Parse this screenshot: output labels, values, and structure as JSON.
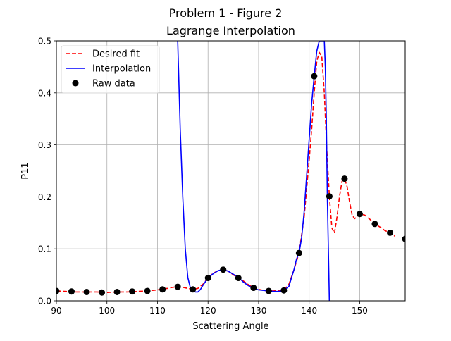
{
  "chart_data": {
    "type": "line",
    "suptitle": "Problem 1 - Figure 2",
    "title": "Lagrange Interpolation",
    "xlabel": "Scattering Angle",
    "ylabel": "P11",
    "xlim": [
      90,
      159
    ],
    "ylim": [
      0,
      0.5
    ],
    "xticks": [
      90,
      100,
      110,
      120,
      130,
      140,
      150
    ],
    "xtick_labels": [
      "90",
      "100",
      "110",
      "120",
      "130",
      "140",
      "150"
    ],
    "yticks": [
      0,
      0.1,
      0.2,
      0.3,
      0.4,
      0.5
    ],
    "ytick_labels": [
      "0.0",
      "0.1",
      "0.2",
      "0.3",
      "0.4",
      "0.5"
    ],
    "grid": true,
    "legend_placement": "upper-left",
    "series": [
      {
        "name": "Desired fit",
        "style": "dashed",
        "color": "#ff0000",
        "x": [
          90,
          92,
          94,
          96,
          98,
          100,
          102,
          104,
          106,
          108,
          110,
          112,
          113,
          114,
          115,
          116,
          117,
          118,
          119,
          120,
          121,
          122,
          123,
          124,
          125,
          126,
          127,
          128,
          129,
          130,
          131,
          132,
          133,
          134,
          135,
          136,
          137,
          138,
          139,
          140,
          140.5,
          141,
          141.5,
          142,
          142.5,
          143,
          143.5,
          144,
          144.5,
          145,
          145.5,
          146,
          146.5,
          147,
          147.5,
          148,
          148.5,
          149,
          150,
          151,
          152,
          153,
          154,
          155,
          156,
          157
        ],
        "y": [
          0.019,
          0.018,
          0.017,
          0.017,
          0.017,
          0.016,
          0.017,
          0.017,
          0.018,
          0.019,
          0.021,
          0.024,
          0.026,
          0.027,
          0.026,
          0.024,
          0.022,
          0.024,
          0.032,
          0.044,
          0.053,
          0.058,
          0.06,
          0.057,
          0.05,
          0.044,
          0.038,
          0.031,
          0.025,
          0.022,
          0.02,
          0.019,
          0.019,
          0.02,
          0.021,
          0.032,
          0.06,
          0.092,
          0.16,
          0.27,
          0.33,
          0.4,
          0.46,
          0.478,
          0.47,
          0.4,
          0.29,
          0.201,
          0.14,
          0.13,
          0.16,
          0.2,
          0.23,
          0.235,
          0.22,
          0.19,
          0.165,
          0.158,
          0.167,
          0.165,
          0.157,
          0.148,
          0.142,
          0.135,
          0.131,
          0.124
        ]
      },
      {
        "name": "Interpolation",
        "style": "solid",
        "color": "#0000ff",
        "x": [
          114,
          114.5,
          115,
          115.5,
          116,
          116.5,
          117,
          117.5,
          118,
          118.5,
          119,
          120,
          121,
          122,
          123,
          124,
          125,
          126,
          127,
          128,
          129,
          130,
          131,
          132,
          133,
          134,
          135,
          136,
          137,
          137.5,
          138,
          138.5,
          139,
          139.5,
          140,
          140.5,
          141,
          141.5,
          142,
          142.5,
          143,
          143.2,
          143.4,
          143.6,
          143.8,
          144,
          144.2
        ],
        "y": [
          0.5,
          0.33,
          0.2,
          0.1,
          0.045,
          0.025,
          0.02,
          0.017,
          0.017,
          0.022,
          0.03,
          0.044,
          0.052,
          0.058,
          0.06,
          0.057,
          0.051,
          0.045,
          0.036,
          0.029,
          0.024,
          0.021,
          0.02,
          0.019,
          0.018,
          0.018,
          0.02,
          0.028,
          0.06,
          0.08,
          0.092,
          0.12,
          0.17,
          0.24,
          0.31,
          0.38,
          0.432,
          0.48,
          0.5,
          0.5,
          0.5,
          0.45,
          0.35,
          0.2,
          0.1,
          0.0,
          0.0
        ]
      },
      {
        "name": "Raw data",
        "style": "markers",
        "color": "#000000",
        "x": [
          90,
          93,
          96,
          99,
          102,
          105,
          108,
          111,
          114,
          117,
          120,
          123,
          126,
          129,
          132,
          135,
          138,
          141,
          144,
          147,
          150,
          153,
          156,
          159
        ],
        "y": [
          0.019,
          0.018,
          0.017,
          0.016,
          0.017,
          0.018,
          0.019,
          0.022,
          0.027,
          0.022,
          0.044,
          0.06,
          0.044,
          0.025,
          0.019,
          0.02,
          0.092,
          0.432,
          0.201,
          0.235,
          0.167,
          0.148,
          0.131,
          0.119
        ]
      }
    ]
  }
}
